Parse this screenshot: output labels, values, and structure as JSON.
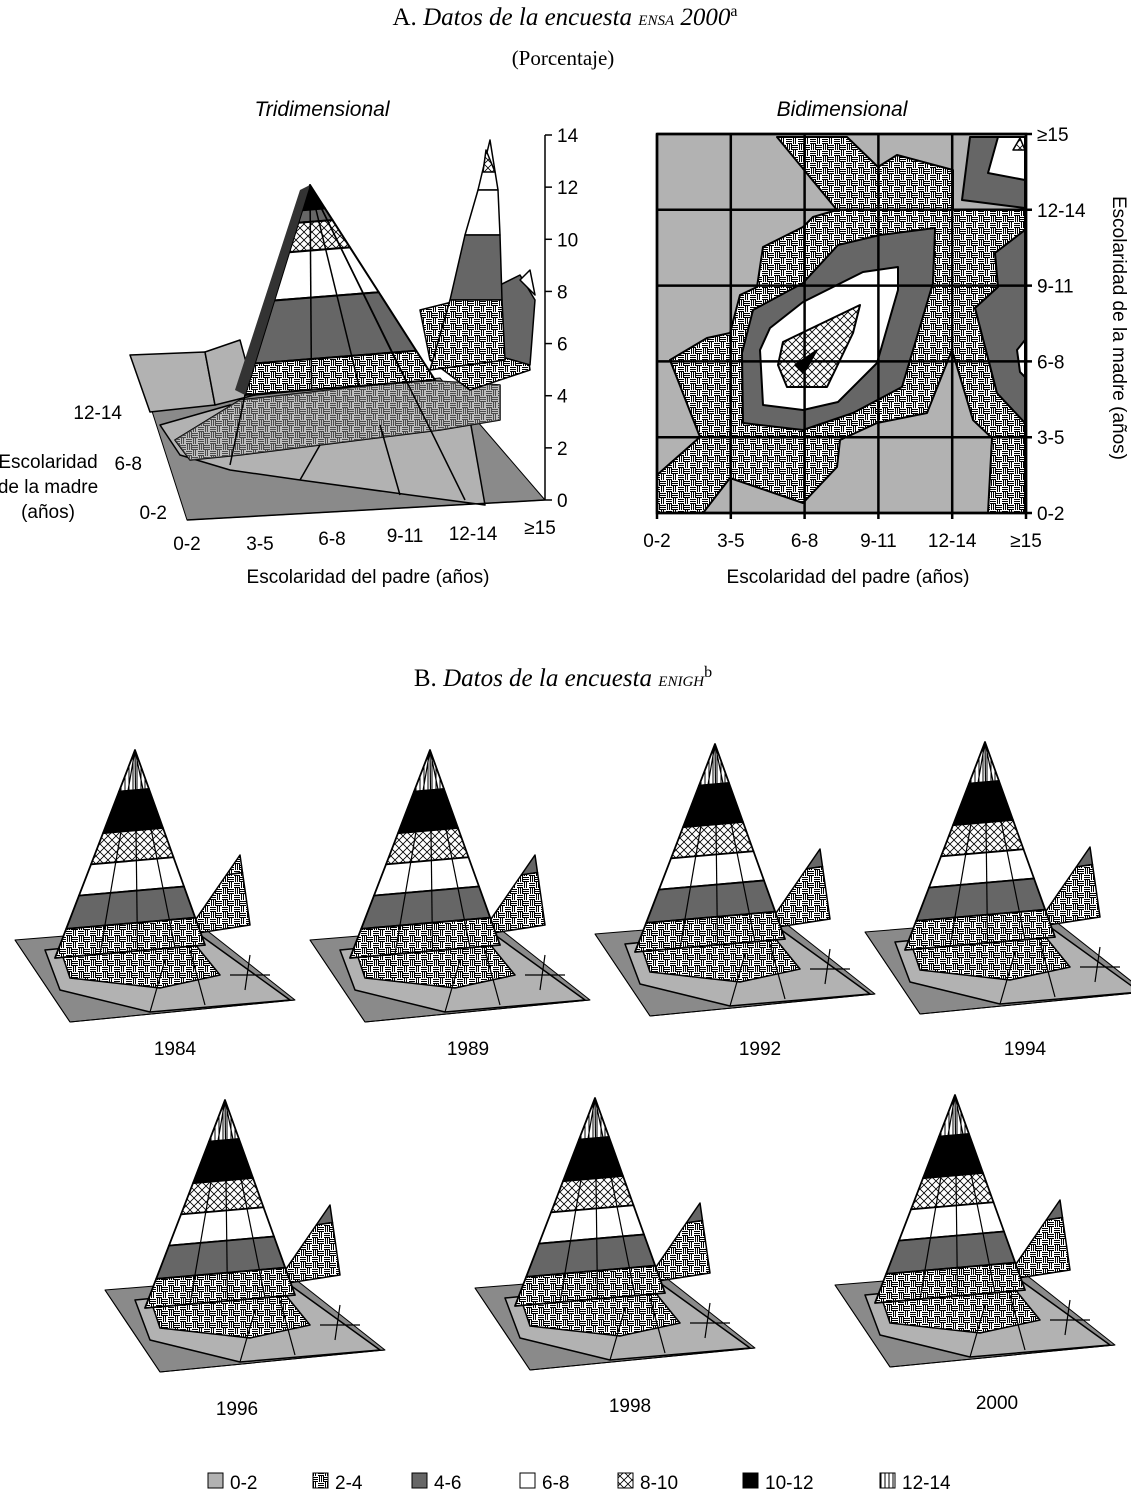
{
  "panel_a": {
    "letter": "A.",
    "title": "Datos de la encuesta",
    "survey": "ENSA",
    "year": "2000",
    "note": "a",
    "subtitle": "(Porcentaje)"
  },
  "panel_b": {
    "letter": "B.",
    "title": "Datos de la encuesta",
    "survey": "ENIGH",
    "note": "b"
  },
  "legend": [
    {
      "label": "0-2",
      "fill": "gray"
    },
    {
      "label": "2-4",
      "fill": "basketweave"
    },
    {
      "label": "4-6",
      "fill": "dark-gray"
    },
    {
      "label": "6-8",
      "fill": "white"
    },
    {
      "label": "8-10",
      "fill": "crosshatch"
    },
    {
      "label": "10-12",
      "fill": "black"
    },
    {
      "label": "12-14",
      "fill": "vertical-stripes"
    }
  ],
  "colors": {
    "gray": "#b2b2b2",
    "floor": "#8a8a8a",
    "dark_gray": "#666666",
    "black": "#000000",
    "white": "#ffffff"
  },
  "chart_data": [
    {
      "type": "surface",
      "title": "Tridimensional",
      "xlabel": "Escolaridad del padre (años)",
      "ylabel_lines": [
        "Escolaridad",
        "de la madre",
        "(años)"
      ],
      "x_ticks": [
        "0-2",
        "3-5",
        "6-8",
        "9-11",
        "12-14",
        "≥15"
      ],
      "y_ticks": [
        "12-14",
        "6-8",
        "0-2"
      ],
      "z_ticks": [
        "14",
        "12",
        "10",
        "8",
        "6",
        "4",
        "2",
        "0"
      ],
      "zlim": [
        0,
        14
      ]
    },
    {
      "type": "heatmap",
      "title": "Bidimensional",
      "xlabel": "Escolaridad del padre (años)",
      "ylabel": "Escolaridad de la madre (años)",
      "x_ticks": [
        "0-2",
        "3-5",
        "6-8",
        "9-11",
        "12-14",
        "≥15"
      ],
      "y_ticks": [
        "≥15",
        "12-14",
        "9-11",
        "6-8",
        "3-5",
        "0-2"
      ],
      "grid": true
    },
    {
      "type": "surface",
      "title": "1984"
    },
    {
      "type": "surface",
      "title": "1989"
    },
    {
      "type": "surface",
      "title": "1992"
    },
    {
      "type": "surface",
      "title": "1994"
    },
    {
      "type": "surface",
      "title": "1996"
    },
    {
      "type": "surface",
      "title": "1998"
    },
    {
      "type": "surface",
      "title": "2000"
    }
  ]
}
